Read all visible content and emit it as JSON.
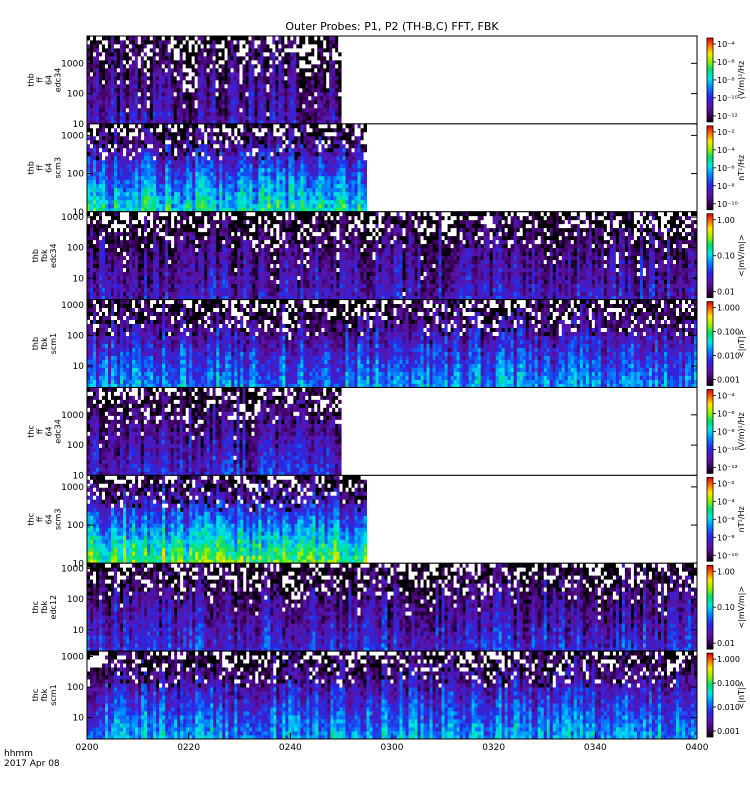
{
  "title": "Outer Probes: P1, P2 (TH-B,C) FFT, FBK",
  "footer": {
    "line1": "hhmm",
    "line2": "2017 Apr 08"
  },
  "x_ticks": [
    "0200",
    "0220",
    "0240",
    "0300",
    "0320",
    "0340",
    "0400"
  ],
  "colors": {
    "no_data": "#ffffff",
    "frame": "#000000"
  },
  "chart_data": {
    "type": "heatmap",
    "title": "Outer Probes: P1, P2 (TH-B,C) FFT, FBK",
    "xlabel": "hhmm",
    "date": "2017 Apr 08",
    "time_range": [
      "0200",
      "0400"
    ],
    "panels": [
      {
        "label": [
          "thb",
          "ff",
          "64",
          "edc34"
        ],
        "y_ticks": [
          "10",
          "100",
          "1000"
        ],
        "ylim": [
          10,
          8000
        ],
        "ylog": true,
        "cbar_ticks": [
          "10⁻⁴",
          "10⁻⁶",
          "10⁻⁸",
          "10⁻¹⁰",
          "10⁻¹²"
        ],
        "cbar_label": "(V/m)²/Hz",
        "cbar_log": true,
        "data_until": "0250",
        "strength": 0.18
      },
      {
        "label": [
          "thb",
          "ff",
          "64",
          "scm3"
        ],
        "y_ticks": [
          "10",
          "100",
          "1000"
        ],
        "ylim": [
          10,
          2000
        ],
        "ylog": true,
        "cbar_ticks": [
          "10⁻²",
          "10⁻⁴",
          "10⁻⁶",
          "10⁻⁸",
          "10⁻¹⁰"
        ],
        "cbar_label": "nT²/Hz",
        "cbar_log": true,
        "data_until": "0255",
        "strength": 0.55
      },
      {
        "label": [
          "thb",
          "fbk",
          "edc34"
        ],
        "y_ticks": [
          "10",
          "100",
          "1000"
        ],
        "ylim": [
          2,
          1500
        ],
        "ylog": true,
        "cbar_ticks": [
          "1.00",
          "0.10",
          "0.01"
        ],
        "cbar_label": "<|mV/m|>",
        "cbar_log": true,
        "data_until": "0400",
        "strength": 0.22
      },
      {
        "label": [
          "thb",
          "fbk",
          "scm1"
        ],
        "y_ticks": [
          "10",
          "100",
          "1000"
        ],
        "ylim": [
          2,
          1500
        ],
        "ylog": true,
        "cbar_ticks": [
          "1.000",
          "0.100",
          "0.010",
          "0.001"
        ],
        "cbar_label": "<|nT|>",
        "cbar_log": true,
        "data_until": "0400",
        "strength": 0.42
      },
      {
        "label": [
          "thc",
          "ff",
          "64",
          "edc34"
        ],
        "y_ticks": [
          "10",
          "100",
          "1000"
        ],
        "ylim": [
          10,
          8000
        ],
        "ylog": true,
        "cbar_ticks": [
          "10⁻⁴",
          "10⁻⁶",
          "10⁻⁸",
          "10⁻¹⁰",
          "10⁻¹²"
        ],
        "cbar_label": "(V/m)²/Hz",
        "cbar_log": true,
        "data_until": "0250",
        "strength": 0.25
      },
      {
        "label": [
          "thc",
          "ff",
          "64",
          "scm3"
        ],
        "y_ticks": [
          "10",
          "100",
          "1000"
        ],
        "ylim": [
          10,
          2000
        ],
        "ylog": true,
        "cbar_ticks": [
          "10⁻²",
          "10⁻⁴",
          "10⁻⁶",
          "10⁻⁸",
          "10⁻¹⁰"
        ],
        "cbar_label": "nT²/Hz",
        "cbar_log": true,
        "data_until": "0255",
        "strength": 0.68
      },
      {
        "label": [
          "thc",
          "fbk",
          "edc12"
        ],
        "y_ticks": [
          "10",
          "100",
          "1000"
        ],
        "ylim": [
          2,
          1500
        ],
        "ylog": true,
        "cbar_ticks": [
          "1.00",
          "0.10",
          "0.01"
        ],
        "cbar_label": "<|mV/m|>",
        "cbar_log": true,
        "data_until": "0400",
        "strength": 0.28
      },
      {
        "label": [
          "thc",
          "fbk",
          "scm1"
        ],
        "y_ticks": [
          "10",
          "100",
          "1000"
        ],
        "ylim": [
          2,
          1500
        ],
        "ylog": true,
        "cbar_ticks": [
          "1.000",
          "0.100",
          "0.010",
          "0.001"
        ],
        "cbar_label": "<|nT|>",
        "cbar_log": true,
        "data_until": "0400",
        "strength": 0.45
      }
    ]
  }
}
